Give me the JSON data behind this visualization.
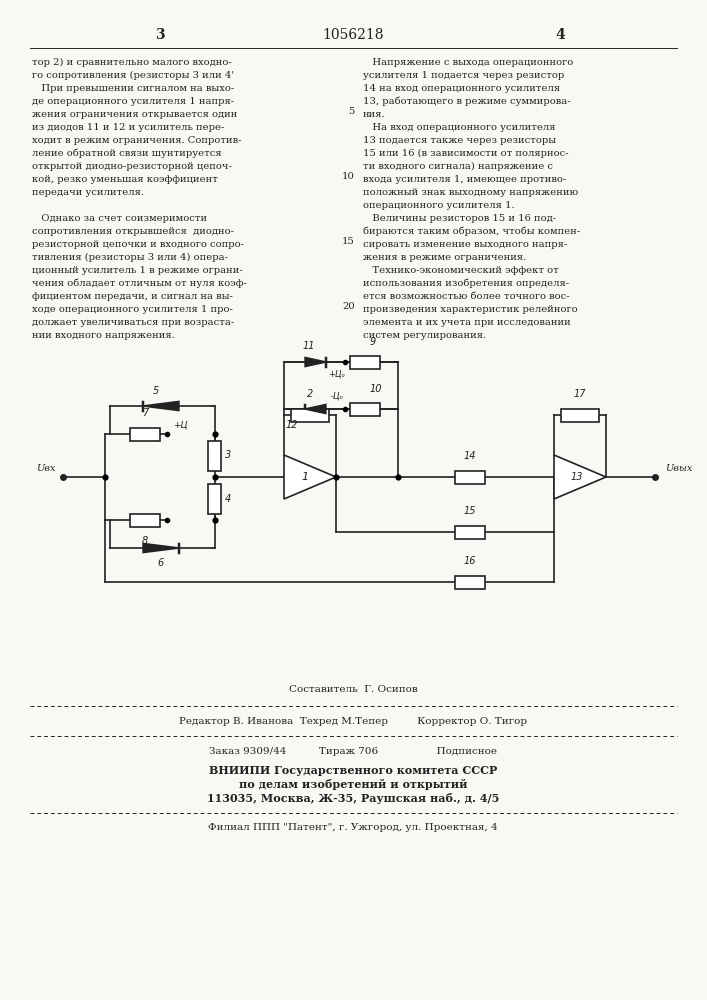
{
  "page_number_left": "3",
  "page_number_center": "1056218",
  "page_number_right": "4",
  "col1_lines": [
    "тор 2) и сравнительно малого входно-",
    "го сопротивления (резисторы 3 или 4'",
    "   При превышении сигналом на выхо-",
    "де операционного усилителя 1 напря-",
    "жения ограничения открывается один",
    "из диодов 11 и 12 и усилитель пере-",
    "ходит в режим ограничения. Сопротив-",
    "ление обратной связи шунтируется",
    "открытой диодно-резисторной цепоч-",
    "кой, резко уменьшая коэффициент",
    "передачи усилителя.",
    "",
    "   Однако за счет соизмеримости",
    "сопротивления открывшейся  диодно-",
    "резисторной цепочки и входного сопро-",
    "тивления (резисторы 3 или 4) опера-",
    "ционный усилитель 1 в режиме ограни-",
    "чения обладает отличным от нуля коэф-",
    "фициентом передачи, и сигнал на вы-",
    "ходе операционного усилителя 1 про-",
    "должает увеличиваться при возраста-",
    "нии входного напряжения."
  ],
  "col2_lines": [
    "   Напряжение с выхода операционного",
    "усилителя 1 подается через резистор",
    "14 на вход операционного усилителя",
    "13, работающего в режиме суммирова-",
    "ния.",
    "   На вход операционного усилителя",
    "13 подается также через резисторы",
    "15 или 16 (в зависимости от полярнос-",
    "ти входного сигнала) напряжение с",
    "входа усилителя 1, имеющее противо-",
    "положный знак выходному напряжению",
    "операционного усилителя 1.",
    "   Величины резисторов 15 и 16 под-",
    "бираются таким образом, чтобы компен-",
    "сировать изменение выходного напря-",
    "жения в режиме ограничения.",
    "   Технико-экономический эффект от",
    "использования изобретения определя-",
    "ется возможностью более точного вос-",
    "произведения характеристик релейного",
    "элемента и их учета при исследовании",
    "систем регулирования."
  ],
  "composer_line": "Составитель  Г. Осипов",
  "editor_line": "Редактор В. Иванова  Техред М.Тепер         Корректор О. Тигор",
  "order_line": "Заказ 9309/44          Тираж 706                  Подписное",
  "vniipi_line1": "ВНИИПИ Государственного комитета СССР",
  "vniipi_line2": "по делам изобретений и открытий",
  "vniipi_line3": "113035, Москва, Ж-35, Раушская наб., д. 4/5",
  "filial_line": "Филиал ППП \"Патент\", г. Ужгород, ул. Проектная, 4",
  "bg_color": "#f8f8f4",
  "text_color": "#222222"
}
